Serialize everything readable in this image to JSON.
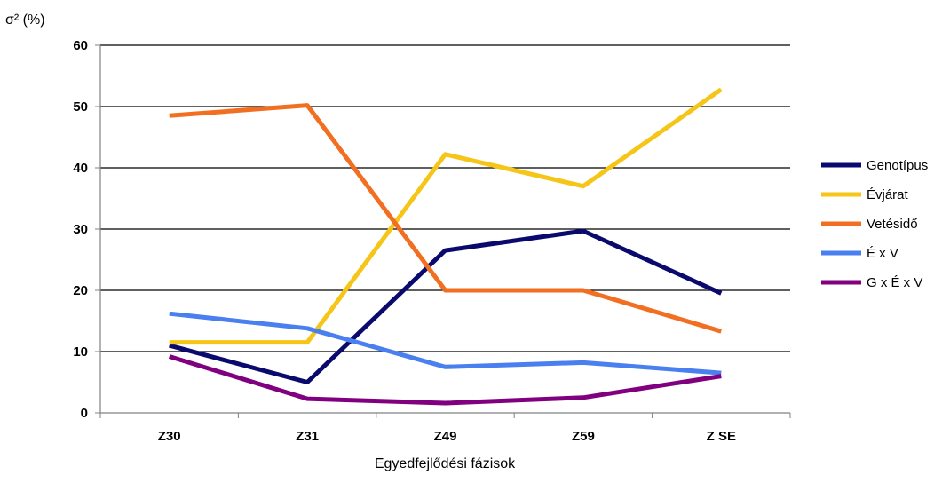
{
  "chart_data": {
    "type": "line",
    "ylabel": "σ² (%)",
    "xlabel": "Egyedfejlődési fázisok",
    "categories": [
      "Z30",
      "Z31",
      "Z49",
      "Z59",
      "Z SE"
    ],
    "ylim": [
      0,
      60
    ],
    "yticks": [
      0,
      10,
      20,
      30,
      40,
      50,
      60
    ],
    "grid": true,
    "legend_position": "right",
    "series": [
      {
        "name": "Genotípus",
        "color": "#0a0a6e",
        "values": [
          11,
          5,
          26.5,
          29.7,
          19.5
        ]
      },
      {
        "name": "Évjárat",
        "color": "#f5c518",
        "values": [
          11.5,
          11.5,
          42.2,
          37,
          52.8
        ]
      },
      {
        "name": "Vetésidő",
        "color": "#f26f21",
        "values": [
          48.5,
          50.2,
          20,
          20,
          13.3
        ]
      },
      {
        "name": "É x V",
        "color": "#4a7ff0",
        "values": [
          16.2,
          13.8,
          7.5,
          8.2,
          6.5
        ]
      },
      {
        "name": "G x É x V",
        "color": "#800080",
        "values": [
          9.2,
          2.3,
          1.6,
          2.5,
          6
        ]
      }
    ]
  }
}
